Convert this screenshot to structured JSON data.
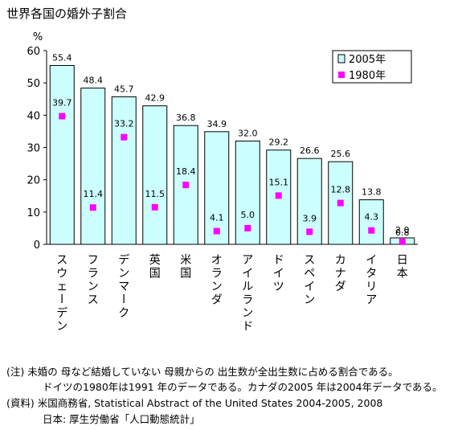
{
  "title": "世界各国の婚外子割合",
  "chart_data": {
    "type": "bar",
    "title": "世界各国の婚外子割合",
    "ylabel": "%",
    "xlabel": "",
    "ylim": [
      0,
      60
    ],
    "yticks": [
      0,
      10,
      20,
      30,
      40,
      50,
      60
    ],
    "categories": [
      "スウェーデン",
      "フランス",
      "デンマーク",
      "英国",
      "米国",
      "オランダ",
      "アイルランド",
      "ドイツ",
      "スペイン",
      "カナダ",
      "イタリア",
      "日本"
    ],
    "series": [
      {
        "name": "2005年",
        "type": "bar",
        "color": "#ccffff",
        "values": [
          55.4,
          48.4,
          45.7,
          42.9,
          36.8,
          34.9,
          32.0,
          29.2,
          26.6,
          25.6,
          13.8,
          2.0
        ]
      },
      {
        "name": "1980年",
        "type": "marker",
        "color": "#ff00ff",
        "values": [
          39.7,
          11.4,
          33.2,
          11.5,
          18.4,
          4.1,
          5.0,
          15.1,
          3.9,
          12.8,
          4.3,
          0.8
        ]
      }
    ],
    "legend_position": "top-right",
    "grid": false
  },
  "notes": [
    "(注) 未婚の 母など結婚していない 母親からの 出生数が全出生数に占める割合である。",
    "ドイツの1980年は1991 年のデータである。カナダの2005 年は2004年データである。",
    "(資料) 米国商務省, Statistical Abstract of the United States 2004-2005, 2008",
    "日本: 厚生労働省「人口動態統計」"
  ]
}
